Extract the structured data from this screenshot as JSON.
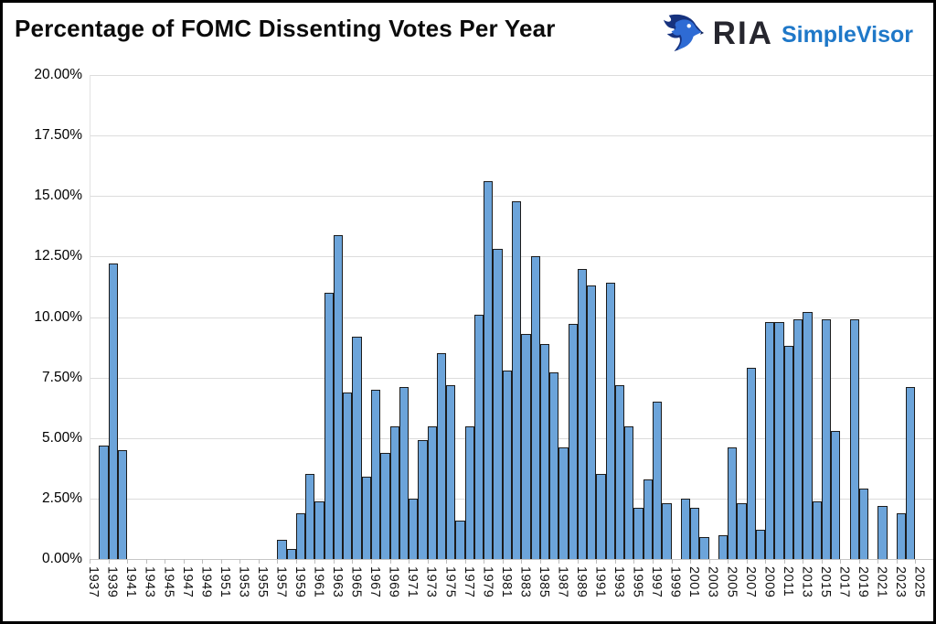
{
  "header": {
    "title": "Percentage of FOMC Dissenting Votes Per Year",
    "logo": {
      "ria": "RIA",
      "simplevisor": "SimpleVisor"
    }
  },
  "colors": {
    "bar_fill": "#6CA4DA",
    "bar_border": "#1c1c1c",
    "gridline": "#dcdcdc",
    "axis_line": "#c6c6c6",
    "logo_ria_text": "#26262e",
    "logo_simplevisor_text": "#1f78c8",
    "logo_eagle_dark": "#16327e",
    "logo_eagle_light": "#2e6bd4",
    "title_text": "#0b0b0b"
  },
  "chart_data": {
    "type": "bar",
    "title": "Percentage of FOMC Dissenting Votes Per Year",
    "xlabel": "",
    "ylabel": "",
    "ylim": [
      0,
      20
    ],
    "grid": true,
    "y_tick_values": [
      20,
      17.5,
      15,
      12.5,
      10,
      7.5,
      5,
      2.5,
      0
    ],
    "y_tick_labels": [
      "20.00%",
      "17.50%",
      "15.00%",
      "12.50%",
      "10.00%",
      "7.50%",
      "5.00%",
      "2.50%",
      "0.00%"
    ],
    "x_tick_labels": [
      "1937",
      "1939",
      "1941",
      "1943",
      "1945",
      "1947",
      "1949",
      "1951",
      "1953",
      "1955",
      "1957",
      "1959",
      "1961",
      "1963",
      "1965",
      "1967",
      "1969",
      "1971",
      "1973",
      "1975",
      "1977",
      "1979",
      "1981",
      "1983",
      "1985",
      "1987",
      "1989",
      "1991",
      "1993",
      "1995",
      "1997",
      "1999",
      "2001",
      "2003",
      "2005",
      "2007",
      "2009",
      "2011",
      "2013",
      "2015",
      "2017",
      "2019",
      "2021",
      "2023",
      "2025"
    ],
    "categories": [
      1937,
      1938,
      1939,
      1940,
      1941,
      1942,
      1943,
      1944,
      1945,
      1946,
      1947,
      1948,
      1949,
      1950,
      1951,
      1952,
      1953,
      1954,
      1955,
      1956,
      1957,
      1958,
      1959,
      1960,
      1961,
      1962,
      1963,
      1964,
      1965,
      1966,
      1967,
      1968,
      1969,
      1970,
      1971,
      1972,
      1973,
      1974,
      1975,
      1976,
      1977,
      1978,
      1979,
      1980,
      1981,
      1982,
      1983,
      1984,
      1985,
      1986,
      1987,
      1988,
      1989,
      1990,
      1991,
      1992,
      1993,
      1994,
      1995,
      1996,
      1997,
      1998,
      1999,
      2000,
      2001,
      2002,
      2003,
      2004,
      2005,
      2006,
      2007,
      2008,
      2009,
      2010,
      2011,
      2012,
      2013,
      2014,
      2015,
      2016,
      2017,
      2018,
      2019,
      2020,
      2021,
      2022,
      2023,
      2024,
      2025
    ],
    "values": [
      0,
      4.7,
      12.2,
      4.5,
      0,
      0,
      0,
      0,
      0,
      0,
      0,
      0,
      0,
      0,
      0,
      0,
      0,
      0,
      0,
      0,
      0.8,
      0.4,
      1.9,
      3.5,
      2.4,
      11.0,
      13.4,
      6.9,
      9.2,
      3.4,
      7.0,
      4.4,
      5.5,
      7.1,
      2.5,
      4.9,
      5.5,
      8.5,
      7.2,
      1.6,
      5.5,
      10.1,
      15.6,
      12.8,
      7.8,
      14.8,
      9.3,
      12.5,
      8.9,
      7.7,
      4.6,
      9.7,
      12.0,
      11.3,
      3.5,
      11.4,
      7.2,
      5.5,
      2.1,
      3.3,
      6.5,
      2.3,
      0,
      2.5,
      2.1,
      0.9,
      0,
      1.0,
      4.6,
      2.3,
      7.9,
      1.2,
      9.8,
      9.8,
      8.8,
      9.9,
      10.2,
      2.4,
      9.9,
      5.3,
      0,
      9.9,
      2.9,
      0,
      2.2,
      0,
      1.9,
      7.1,
      0
    ]
  }
}
